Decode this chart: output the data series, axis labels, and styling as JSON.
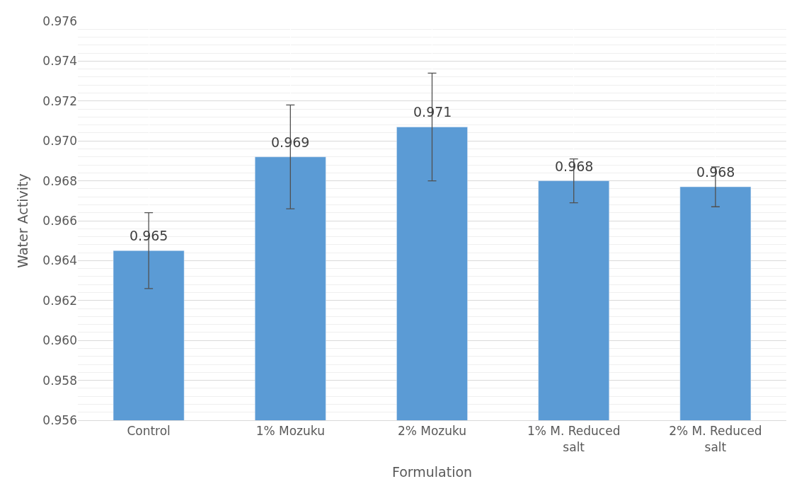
{
  "chart_data": {
    "type": "bar",
    "xlabel": "Formulation",
    "ylabel": "Water Activity",
    "categories": [
      "Control",
      "1% Mozuku",
      "2% Mozuku",
      "1% M. Reduced salt",
      "2% M. Reduced salt"
    ],
    "values": [
      0.9645,
      0.9692,
      0.9707,
      0.968,
      0.9677
    ],
    "value_labels": [
      "0.965",
      "0.969",
      "0.971",
      "0.968",
      "0.968"
    ],
    "errors": [
      0.0019,
      0.0026,
      0.0027,
      0.0011,
      0.001
    ],
    "color": "#5b9bd5",
    "ylim": [
      0.956,
      0.976
    ],
    "yticks": [
      0.956,
      0.958,
      {
        "value": 0.96,
        "label": "0.960"
      },
      0.962,
      0.964,
      0.966,
      0.968,
      {
        "value": 0.97,
        "label": "0.970"
      },
      0.972,
      0.974,
      0.976
    ],
    "grid": true
  }
}
